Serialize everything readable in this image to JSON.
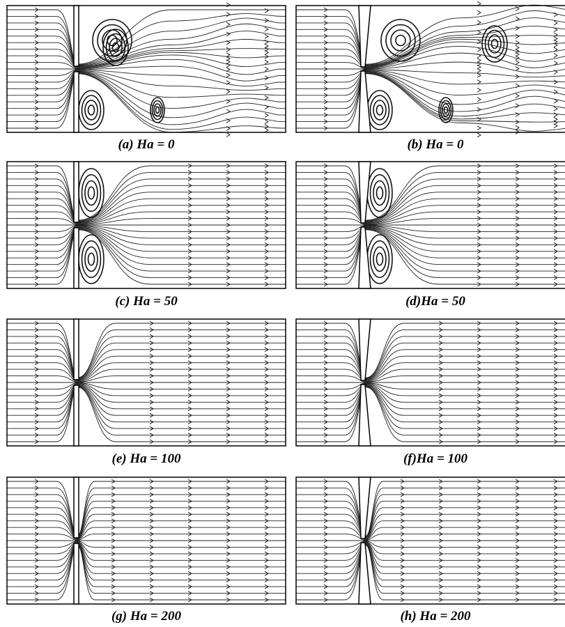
{
  "panels": [
    {
      "caption": "(a) Ha = 0"
    },
    {
      "caption": "(b) Ha = 0"
    },
    {
      "caption": "(c) Ha = 50"
    },
    {
      "caption": "(d)Ha = 50"
    },
    {
      "caption": "(e) Ha = 100"
    },
    {
      "caption": "(f)Ha = 100"
    },
    {
      "caption": "(g) Ha = 200"
    },
    {
      "caption": "(h) Ha = 200"
    }
  ]
}
